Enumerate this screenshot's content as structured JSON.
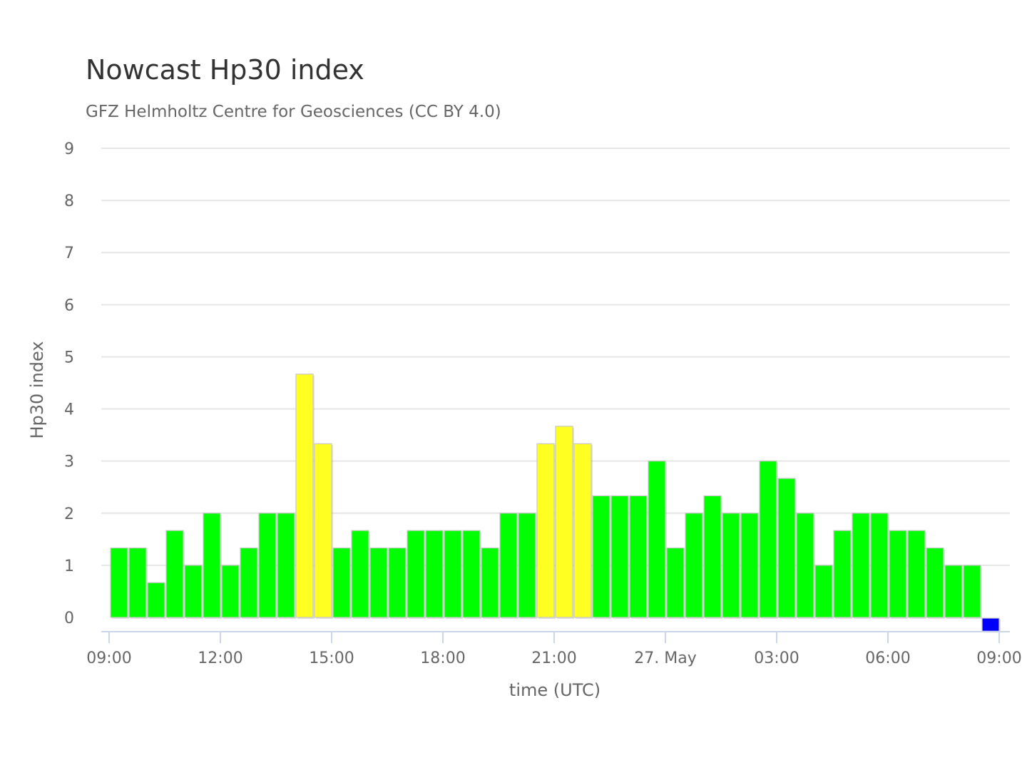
{
  "chart_data": {
    "type": "bar",
    "title": "Nowcast Hp30 index",
    "subtitle": "GFZ Helmholtz Centre for Geosciences (CC BY 4.0)",
    "xlabel": "time (UTC)",
    "ylabel": "Hp30 index",
    "ylim": [
      0,
      9
    ],
    "yticks": [
      0,
      1,
      2,
      3,
      4,
      5,
      6,
      7,
      8,
      9
    ],
    "x_start": "09:00",
    "bar_interval_minutes": 30,
    "xtick_labels": [
      "09:00",
      "12:00",
      "15:00",
      "18:00",
      "21:00",
      "27. May",
      "03:00",
      "06:00",
      "09:00"
    ],
    "xtick_hours": [
      0,
      3,
      6,
      9,
      12,
      15,
      18,
      21,
      24
    ],
    "grid": true,
    "legend": "none",
    "colors": {
      "green": "#00ff00",
      "yellow": "#ffff22",
      "blue": "#0000ff",
      "grid": "#e6e6e6",
      "axis": "#ccd6eb",
      "bar_border": "#c8c8c8"
    },
    "bars": [
      {
        "time": "09:00",
        "value": 1.333,
        "color": "green"
      },
      {
        "time": "09:30",
        "value": 1.333,
        "color": "green"
      },
      {
        "time": "10:00",
        "value": 0.667,
        "color": "green"
      },
      {
        "time": "10:30",
        "value": 1.667,
        "color": "green"
      },
      {
        "time": "11:00",
        "value": 1.0,
        "color": "green"
      },
      {
        "time": "11:30",
        "value": 2.0,
        "color": "green"
      },
      {
        "time": "12:00",
        "value": 1.0,
        "color": "green"
      },
      {
        "time": "12:30",
        "value": 1.333,
        "color": "green"
      },
      {
        "time": "13:00",
        "value": 2.0,
        "color": "green"
      },
      {
        "time": "13:30",
        "value": 2.0,
        "color": "green"
      },
      {
        "time": "14:00",
        "value": 4.667,
        "color": "yellow"
      },
      {
        "time": "14:30",
        "value": 3.333,
        "color": "yellow"
      },
      {
        "time": "15:00",
        "value": 1.333,
        "color": "green"
      },
      {
        "time": "15:30",
        "value": 1.667,
        "color": "green"
      },
      {
        "time": "16:00",
        "value": 1.333,
        "color": "green"
      },
      {
        "time": "16:30",
        "value": 1.333,
        "color": "green"
      },
      {
        "time": "17:00",
        "value": 1.667,
        "color": "green"
      },
      {
        "time": "17:30",
        "value": 1.667,
        "color": "green"
      },
      {
        "time": "18:00",
        "value": 1.667,
        "color": "green"
      },
      {
        "time": "18:30",
        "value": 1.667,
        "color": "green"
      },
      {
        "time": "19:00",
        "value": 1.333,
        "color": "green"
      },
      {
        "time": "19:30",
        "value": 2.0,
        "color": "green"
      },
      {
        "time": "20:00",
        "value": 2.0,
        "color": "green"
      },
      {
        "time": "20:30",
        "value": 3.333,
        "color": "yellow"
      },
      {
        "time": "21:00",
        "value": 3.667,
        "color": "yellow"
      },
      {
        "time": "21:30",
        "value": 3.333,
        "color": "yellow"
      },
      {
        "time": "22:00",
        "value": 2.333,
        "color": "green"
      },
      {
        "time": "22:30",
        "value": 2.333,
        "color": "green"
      },
      {
        "time": "23:00",
        "value": 2.333,
        "color": "green"
      },
      {
        "time": "23:30",
        "value": 3.0,
        "color": "green"
      },
      {
        "time": "00:00",
        "value": 1.333,
        "color": "green"
      },
      {
        "time": "00:30",
        "value": 2.0,
        "color": "green"
      },
      {
        "time": "01:00",
        "value": 2.333,
        "color": "green"
      },
      {
        "time": "01:30",
        "value": 2.0,
        "color": "green"
      },
      {
        "time": "02:00",
        "value": 2.0,
        "color": "green"
      },
      {
        "time": "02:30",
        "value": 3.0,
        "color": "green"
      },
      {
        "time": "03:00",
        "value": 2.667,
        "color": "green"
      },
      {
        "time": "03:30",
        "value": 2.0,
        "color": "green"
      },
      {
        "time": "04:00",
        "value": 1.0,
        "color": "green"
      },
      {
        "time": "04:30",
        "value": 1.667,
        "color": "green"
      },
      {
        "time": "05:00",
        "value": 2.0,
        "color": "green"
      },
      {
        "time": "05:30",
        "value": 2.0,
        "color": "green"
      },
      {
        "time": "06:00",
        "value": 1.667,
        "color": "green"
      },
      {
        "time": "06:30",
        "value": 1.667,
        "color": "green"
      },
      {
        "time": "07:00",
        "value": 1.333,
        "color": "green"
      },
      {
        "time": "07:30",
        "value": 1.0,
        "color": "green"
      },
      {
        "time": "08:00",
        "value": 1.0,
        "color": "green"
      },
      {
        "time": "08:30",
        "value": -0.25,
        "color": "blue"
      }
    ]
  }
}
